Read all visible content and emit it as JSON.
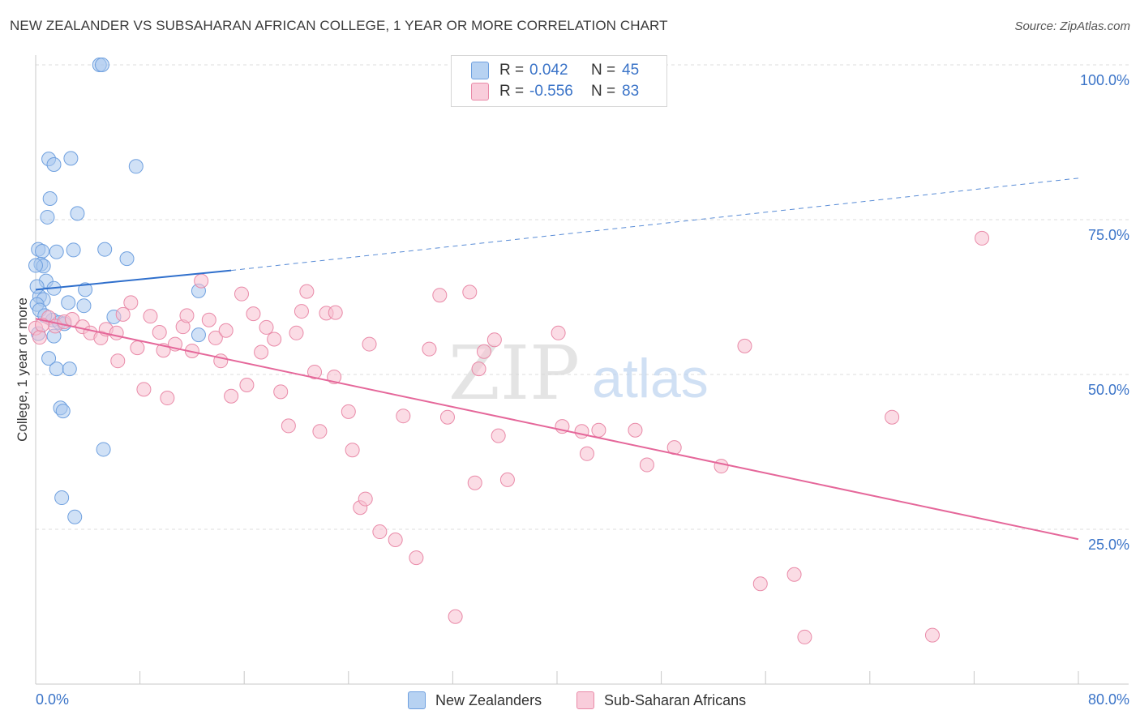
{
  "title": "NEW ZEALANDER VS SUBSAHARAN AFRICAN COLLEGE, 1 YEAR OR MORE CORRELATION CHART",
  "source": "Source: ZipAtlas.com",
  "watermark": {
    "zip": "ZIP",
    "atlas": "atlas"
  },
  "legend": {
    "r_label": "R =",
    "n_label": "N =",
    "series": [
      {
        "name": "New Zealanders",
        "r": "0.042",
        "n": "45",
        "color": "#a9c8ef",
        "stroke": "#6fa0df",
        "line": "#2f6fcc"
      },
      {
        "name": "Sub-Saharan Africans",
        "r": "-0.556",
        "n": "83",
        "color": "#f7bfd0",
        "stroke": "#e98aa8",
        "line": "#e5679a"
      }
    ]
  },
  "chart_data": {
    "type": "scatter",
    "title": "NEW ZEALANDER VS SUBSAHARAN AFRICAN COLLEGE, 1 YEAR OR MORE CORRELATION CHART",
    "xlabel": "",
    "ylabel": "College, 1 year or more",
    "xlim": [
      0,
      80
    ],
    "ylim": [
      0,
      100
    ],
    "x_tick_labels": [
      "0.0%",
      "80.0%"
    ],
    "y_ticks": [
      25,
      50,
      75,
      100
    ],
    "y_tick_labels": [
      "25.0%",
      "50.0%",
      "75.0%",
      "100.0%"
    ],
    "series": [
      {
        "name": "New Zealanders",
        "points": [
          [
            4.9,
            100.0
          ],
          [
            5.1,
            100.0
          ],
          [
            1.0,
            84.8
          ],
          [
            2.7,
            84.9
          ],
          [
            1.4,
            83.9
          ],
          [
            7.7,
            83.6
          ],
          [
            1.1,
            78.4
          ],
          [
            0.9,
            75.4
          ],
          [
            3.2,
            76.0
          ],
          [
            0.2,
            70.2
          ],
          [
            0.5,
            69.9
          ],
          [
            1.6,
            69.8
          ],
          [
            2.9,
            70.1
          ],
          [
            5.3,
            70.2
          ],
          [
            7.0,
            68.7
          ],
          [
            0.4,
            67.8
          ],
          [
            0.6,
            67.5
          ],
          [
            0.8,
            65.1
          ],
          [
            1.4,
            63.9
          ],
          [
            3.8,
            63.7
          ],
          [
            12.5,
            63.5
          ],
          [
            0.3,
            62.6
          ],
          [
            0.6,
            62.1
          ],
          [
            2.5,
            61.6
          ],
          [
            3.7,
            61.1
          ],
          [
            0.1,
            61.3
          ],
          [
            6.0,
            59.3
          ],
          [
            1.3,
            58.8
          ],
          [
            1.8,
            58.4
          ],
          [
            2.2,
            58.2
          ],
          [
            1.4,
            56.2
          ],
          [
            12.5,
            56.4
          ],
          [
            1.0,
            52.6
          ],
          [
            1.6,
            50.9
          ],
          [
            2.6,
            50.9
          ],
          [
            1.9,
            44.6
          ],
          [
            2.1,
            44.1
          ],
          [
            5.2,
            37.9
          ],
          [
            2.0,
            30.1
          ],
          [
            3.0,
            27.0
          ],
          [
            0.3,
            60.4
          ],
          [
            0.1,
            64.2
          ],
          [
            0.0,
            67.6
          ],
          [
            0.2,
            56.6
          ],
          [
            0.7,
            59.5
          ]
        ],
        "trend": {
          "x": [
            0,
            15
          ],
          "y": [
            63.7,
            66.8
          ]
        },
        "trend_extension": {
          "x": [
            15,
            80
          ],
          "y": [
            66.8,
            81.7
          ]
        }
      },
      {
        "name": "Sub-Saharan Africans",
        "points": [
          [
            0.0,
            57.5
          ],
          [
            1.0,
            59.2
          ],
          [
            1.5,
            57.8
          ],
          [
            2.2,
            58.5
          ],
          [
            2.8,
            58.9
          ],
          [
            3.6,
            57.7
          ],
          [
            4.2,
            56.7
          ],
          [
            5.0,
            55.9
          ],
          [
            5.4,
            57.3
          ],
          [
            6.2,
            56.7
          ],
          [
            6.3,
            52.2
          ],
          [
            6.7,
            59.7
          ],
          [
            7.3,
            61.6
          ],
          [
            7.8,
            54.3
          ],
          [
            8.3,
            47.6
          ],
          [
            8.8,
            59.4
          ],
          [
            9.5,
            56.8
          ],
          [
            10.1,
            46.2
          ],
          [
            9.8,
            53.9
          ],
          [
            10.7,
            54.9
          ],
          [
            11.3,
            57.7
          ],
          [
            11.6,
            59.5
          ],
          [
            12.0,
            53.8
          ],
          [
            12.7,
            65.1
          ],
          [
            13.3,
            58.8
          ],
          [
            13.8,
            55.9
          ],
          [
            14.2,
            52.2
          ],
          [
            14.6,
            57.1
          ],
          [
            15.0,
            46.5
          ],
          [
            15.8,
            63.0
          ],
          [
            16.2,
            48.3
          ],
          [
            16.7,
            59.8
          ],
          [
            17.3,
            53.6
          ],
          [
            17.7,
            57.6
          ],
          [
            18.3,
            55.7
          ],
          [
            18.8,
            47.2
          ],
          [
            19.4,
            41.7
          ],
          [
            20.0,
            56.7
          ],
          [
            20.4,
            60.2
          ],
          [
            20.8,
            63.4
          ],
          [
            21.4,
            50.4
          ],
          [
            21.8,
            40.8
          ],
          [
            22.3,
            59.9
          ],
          [
            23.0,
            60.0
          ],
          [
            22.9,
            49.6
          ],
          [
            24.0,
            44.0
          ],
          [
            24.3,
            37.8
          ],
          [
            24.9,
            28.5
          ],
          [
            25.3,
            29.9
          ],
          [
            25.6,
            54.9
          ],
          [
            26.4,
            24.6
          ],
          [
            27.6,
            23.3
          ],
          [
            28.2,
            43.3
          ],
          [
            29.2,
            20.4
          ],
          [
            30.2,
            54.1
          ],
          [
            31.0,
            62.8
          ],
          [
            31.6,
            43.1
          ],
          [
            32.2,
            10.9
          ],
          [
            33.3,
            63.3
          ],
          [
            33.7,
            32.5
          ],
          [
            34.0,
            50.9
          ],
          [
            34.4,
            53.7
          ],
          [
            35.2,
            55.6
          ],
          [
            35.5,
            40.1
          ],
          [
            36.2,
            33.0
          ],
          [
            40.1,
            56.7
          ],
          [
            40.4,
            41.6
          ],
          [
            41.9,
            40.8
          ],
          [
            42.3,
            37.2
          ],
          [
            43.2,
            41.0
          ],
          [
            46.0,
            41.0
          ],
          [
            46.9,
            35.4
          ],
          [
            49.0,
            38.2
          ],
          [
            52.6,
            35.2
          ],
          [
            54.4,
            54.6
          ],
          [
            55.6,
            16.2
          ],
          [
            58.2,
            17.7
          ],
          [
            59.0,
            7.6
          ],
          [
            65.7,
            43.1
          ],
          [
            68.8,
            7.9
          ],
          [
            72.6,
            72.0
          ],
          [
            0.3,
            56.0
          ],
          [
            0.5,
            58.0
          ]
        ],
        "trend": {
          "x": [
            0,
            80
          ],
          "y": [
            59.0,
            23.4
          ]
        }
      }
    ]
  }
}
